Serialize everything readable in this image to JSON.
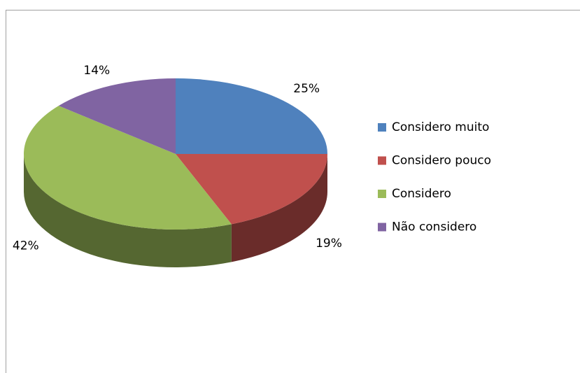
{
  "chart_data": {
    "type": "pie",
    "categories": [
      "Considero muito",
      "Considero pouco",
      "Considero",
      "Não considero"
    ],
    "values": [
      25,
      19,
      42,
      14
    ],
    "value_labels": [
      "25%",
      "19%",
      "42%",
      "14%"
    ],
    "colors": [
      "#4f81bd",
      "#c0504d",
      "#9bbb59",
      "#8064a2"
    ],
    "legend": "right"
  }
}
